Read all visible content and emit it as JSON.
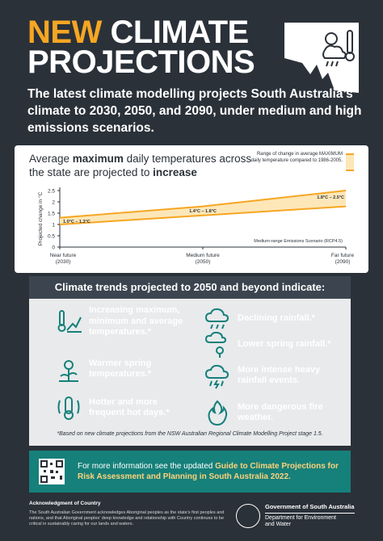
{
  "title": {
    "line1_accent": "NEW",
    "line1_rest": " CLIMATE",
    "line2": "PROJECTIONS"
  },
  "intro": "The latest climate modelling projects South Australia’s climate to 2030, 2050, and 2090, under medium and high emissions scenarios.",
  "chart_heading": {
    "pre": "Average ",
    "bold": "maximum",
    "mid": " daily temperatures across the state are projected to ",
    "bold2": "increase"
  },
  "legend_text": "Range of change in average MAXIMUM daily temperature compared to 1986-2005.",
  "scenario": "Medium-range Emissions Scenario (RCP4.5)",
  "chart_data": {
    "type": "area",
    "ylabel": "Projected change in °C",
    "ylim": [
      0,
      2.5
    ],
    "yticks": [
      "0",
      "0.5",
      "1",
      "1.5",
      "2",
      "2.5"
    ],
    "x_labels": [
      {
        "line1": "Near future",
        "line2": "(2030)"
      },
      {
        "line1": "Medium future",
        "line2": "(2050)"
      },
      {
        "line1": "Far future",
        "line2": "(2090)"
      }
    ],
    "x": [
      0,
      1,
      2
    ],
    "lower": [
      1.0,
      1.4,
      1.8
    ],
    "upper": [
      1.3,
      1.8,
      2.5
    ],
    "labels": [
      "1.0°C – 1.3°C",
      "1.4°C – 1.8°C",
      "1.8°C – 2.5°C"
    ]
  },
  "trends_title": "Climate trends projected to 2050 and beyond indicate:",
  "trends": [
    {
      "icon": "thermometer-graph-icon",
      "text": "Increasing maximum, minimum and average temperatures.*"
    },
    {
      "icon": "warm-flower-icon",
      "text": "Warmer spring temperatures.*"
    },
    {
      "icon": "hot-thermometer-icon",
      "text": "Hotter and more frequent hot days.*"
    },
    {
      "icon": "rain-cloud-icon",
      "text": "Declining rainfall.*"
    },
    {
      "icon": "spring-rain-icon",
      "text": "Lower spring rainfall.*"
    },
    {
      "icon": "storm-cloud-icon",
      "text": "More intense heavy rainfall events."
    },
    {
      "icon": "fire-icon",
      "text": "More dangerous fire weather."
    }
  ],
  "footnote": "*Based on new climate projections from the NSW Australian Regional Climate Modelling Project stage 1.5.",
  "info": {
    "pre": "For more information see the updated ",
    "bold": "Guide to Climate Projections for Risk Assessment and Planning in South Australia 2022."
  },
  "ack": {
    "title": "Acknowledgment of Country",
    "text": "The South Australian Government acknowledges Aboriginal peoples as the state’s first peoples and nations, and that Aboriginal peoples’ deep knowledge and relationship with Country continues to be critical in sustainably caring for our lands and waters."
  },
  "gov": {
    "line1": "Government of South Australia",
    "line2": "Department for Environment",
    "line3": "and Water"
  },
  "colors": {
    "accent": "#f6a623",
    "background": "#2b3139",
    "teal": "#16807a"
  }
}
